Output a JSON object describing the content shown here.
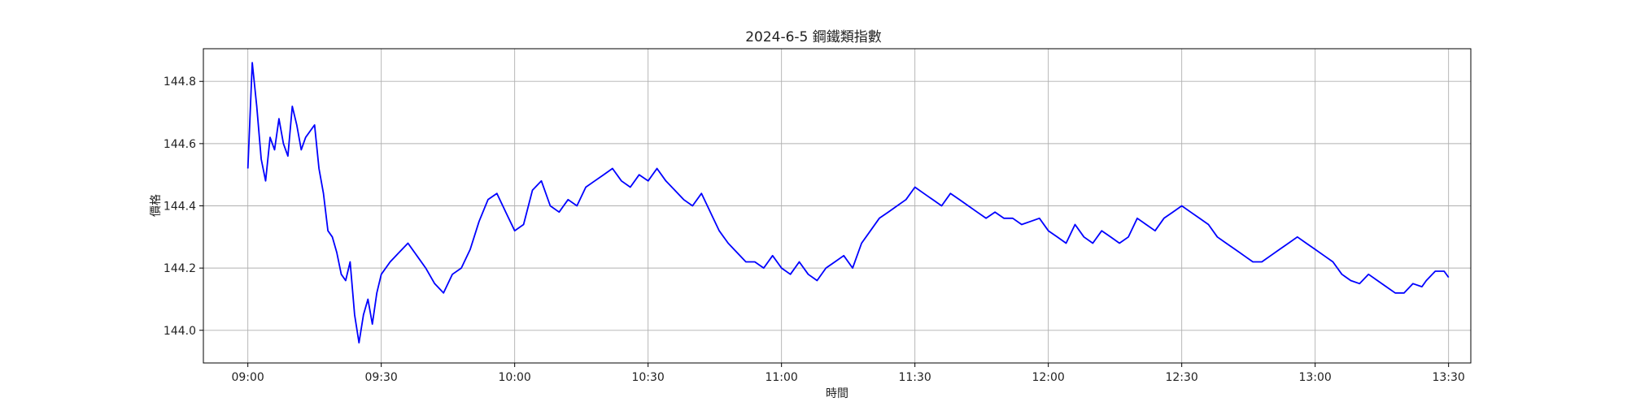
{
  "chart_data": {
    "type": "line",
    "title": "2024-6-5 鋼鐵類指數",
    "xlabel": "時間",
    "ylabel": "價格",
    "xlim": [
      "08:50",
      "13:35"
    ],
    "ylim": [
      143.895,
      144.905
    ],
    "xticks": [
      "09:00",
      "09:30",
      "10:00",
      "10:30",
      "11:00",
      "11:30",
      "12:00",
      "12:30",
      "13:00",
      "13:30"
    ],
    "yticks": [
      "144.0",
      "144.2",
      "144.4",
      "144.6",
      "144.8"
    ],
    "grid": true,
    "line_color": "#0000ff",
    "series": [
      {
        "x": [
          "09:00",
          "09:01",
          "09:02",
          "09:03",
          "09:04",
          "09:05",
          "09:06",
          "09:07",
          "09:08",
          "09:09",
          "09:10",
          "09:11",
          "09:12",
          "09:13",
          "09:14",
          "09:15",
          "09:16",
          "09:17",
          "09:18",
          "09:19",
          "09:20",
          "09:21",
          "09:22",
          "09:23",
          "09:24",
          "09:25",
          "09:26",
          "09:27",
          "09:28",
          "09:29",
          "09:30",
          "09:32",
          "09:34",
          "09:36",
          "09:38",
          "09:40",
          "09:42",
          "09:44",
          "09:46",
          "09:48",
          "09:50",
          "09:52",
          "09:54",
          "09:56",
          "09:58",
          "10:00",
          "10:02",
          "10:04",
          "10:06",
          "10:08",
          "10:10",
          "10:12",
          "10:14",
          "10:16",
          "10:18",
          "10:20",
          "10:22",
          "10:24",
          "10:26",
          "10:28",
          "10:30",
          "10:32",
          "10:34",
          "10:36",
          "10:38",
          "10:40",
          "10:42",
          "10:44",
          "10:46",
          "10:48",
          "10:50",
          "10:52",
          "10:54",
          "10:56",
          "10:58",
          "11:00",
          "11:02",
          "11:04",
          "11:06",
          "11:08",
          "11:10",
          "11:12",
          "11:14",
          "11:16",
          "11:18",
          "11:20",
          "11:22",
          "11:24",
          "11:26",
          "11:28",
          "11:30",
          "11:32",
          "11:34",
          "11:36",
          "11:38",
          "11:40",
          "11:42",
          "11:44",
          "11:46",
          "11:48",
          "11:50",
          "11:52",
          "11:54",
          "11:56",
          "11:58",
          "12:00",
          "12:02",
          "12:04",
          "12:06",
          "12:08",
          "12:10",
          "12:12",
          "12:14",
          "12:16",
          "12:18",
          "12:20",
          "12:22",
          "12:24",
          "12:26",
          "12:28",
          "12:30",
          "12:32",
          "12:34",
          "12:36",
          "12:38",
          "12:40",
          "12:42",
          "12:44",
          "12:46",
          "12:48",
          "12:50",
          "12:52",
          "12:54",
          "12:56",
          "12:58",
          "13:00",
          "13:02",
          "13:04",
          "13:06",
          "13:08",
          "13:10",
          "13:12",
          "13:14",
          "13:16",
          "13:18",
          "13:20",
          "13:22",
          "13:24",
          "13:25",
          "13:27",
          "13:29",
          "13:30"
        ],
        "values": [
          144.52,
          144.86,
          144.72,
          144.55,
          144.48,
          144.62,
          144.58,
          144.68,
          144.6,
          144.56,
          144.72,
          144.66,
          144.58,
          144.62,
          144.64,
          144.66,
          144.52,
          144.44,
          144.32,
          144.3,
          144.25,
          144.18,
          144.16,
          144.22,
          144.05,
          143.96,
          144.05,
          144.1,
          144.02,
          144.12,
          144.18,
          144.22,
          144.25,
          144.28,
          144.24,
          144.2,
          144.15,
          144.12,
          144.18,
          144.2,
          144.26,
          144.35,
          144.42,
          144.44,
          144.38,
          144.32,
          144.34,
          144.45,
          144.48,
          144.4,
          144.38,
          144.42,
          144.4,
          144.46,
          144.48,
          144.5,
          144.52,
          144.48,
          144.46,
          144.5,
          144.48,
          144.52,
          144.48,
          144.45,
          144.42,
          144.4,
          144.44,
          144.38,
          144.32,
          144.28,
          144.25,
          144.22,
          144.22,
          144.2,
          144.24,
          144.2,
          144.18,
          144.22,
          144.18,
          144.16,
          144.2,
          144.22,
          144.24,
          144.2,
          144.28,
          144.32,
          144.36,
          144.38,
          144.4,
          144.42,
          144.46,
          144.44,
          144.42,
          144.4,
          144.44,
          144.42,
          144.4,
          144.38,
          144.36,
          144.38,
          144.36,
          144.36,
          144.34,
          144.35,
          144.36,
          144.32,
          144.3,
          144.28,
          144.34,
          144.3,
          144.28,
          144.32,
          144.3,
          144.28,
          144.3,
          144.36,
          144.34,
          144.32,
          144.36,
          144.38,
          144.4,
          144.38,
          144.36,
          144.34,
          144.3,
          144.28,
          144.26,
          144.24,
          144.22,
          144.22,
          144.24,
          144.26,
          144.28,
          144.3,
          144.28,
          144.26,
          144.24,
          144.22,
          144.18,
          144.16,
          144.15,
          144.18,
          144.16,
          144.14,
          144.12,
          144.12,
          144.15,
          144.14,
          144.16,
          144.19,
          144.19,
          144.17
        ]
      }
    ]
  }
}
